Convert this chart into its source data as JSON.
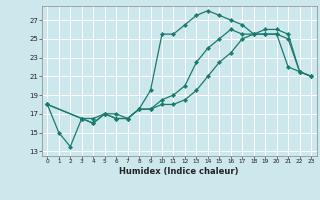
{
  "title": "",
  "xlabel": "Humidex (Indice chaleur)",
  "bg_color": "#cce8ec",
  "grid_color": "#ffffff",
  "line_color": "#1a7a6e",
  "xlim": [
    -0.5,
    23.5
  ],
  "ylim": [
    12.5,
    28.5
  ],
  "xticks": [
    0,
    1,
    2,
    3,
    4,
    5,
    6,
    7,
    8,
    9,
    10,
    11,
    12,
    13,
    14,
    15,
    16,
    17,
    18,
    19,
    20,
    21,
    22,
    23
  ],
  "yticks": [
    13,
    15,
    17,
    19,
    21,
    23,
    25,
    27
  ],
  "line1_x": [
    0,
    1,
    2,
    3,
    4,
    5,
    6,
    7,
    8,
    9,
    10,
    11,
    12,
    13,
    14,
    15,
    16,
    17,
    18,
    19,
    20,
    21,
    22,
    23
  ],
  "line1_y": [
    18.0,
    15.0,
    13.5,
    16.5,
    16.5,
    17.0,
    16.5,
    16.5,
    17.5,
    19.5,
    25.5,
    25.5,
    26.5,
    27.5,
    28.0,
    27.5,
    27.0,
    26.5,
    25.5,
    25.5,
    25.5,
    22.0,
    21.5,
    21.0
  ],
  "line2_x": [
    0,
    3,
    4,
    5,
    6,
    7,
    8,
    9,
    10,
    11,
    12,
    13,
    14,
    15,
    16,
    17,
    18,
    19,
    20,
    21,
    22,
    23
  ],
  "line2_y": [
    18.0,
    16.5,
    16.0,
    17.0,
    16.5,
    16.5,
    17.5,
    17.5,
    18.0,
    18.0,
    18.5,
    19.5,
    21.0,
    22.5,
    23.5,
    25.0,
    25.5,
    26.0,
    26.0,
    25.5,
    21.5,
    21.0
  ],
  "line3_x": [
    0,
    3,
    4,
    5,
    6,
    7,
    8,
    9,
    10,
    11,
    12,
    13,
    14,
    15,
    16,
    17,
    18,
    19,
    20,
    21,
    22,
    23
  ],
  "line3_y": [
    18.0,
    16.5,
    16.0,
    17.0,
    17.0,
    16.5,
    17.5,
    17.5,
    18.5,
    19.0,
    20.0,
    22.5,
    24.0,
    25.0,
    26.0,
    25.5,
    25.5,
    25.5,
    25.5,
    25.0,
    21.5,
    21.0
  ]
}
